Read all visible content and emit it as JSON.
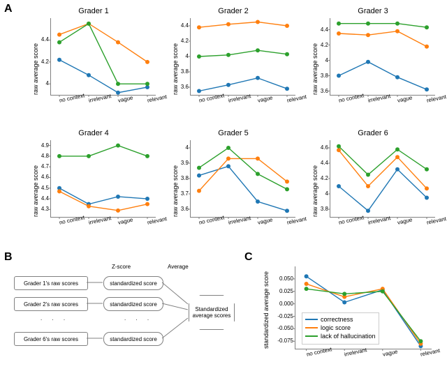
{
  "colors": {
    "correctness": "#1f77b4",
    "logic": "#ff7f0e",
    "hallucination": "#2ca02c",
    "grid": "#b0b0b0",
    "axis": "#808080"
  },
  "categories": [
    "no context",
    "irrelevant",
    "vague",
    "relevant"
  ],
  "line_width": 1.4,
  "marker_size": 3,
  "small_charts": [
    {
      "title": "Grader 1",
      "ylabel": "raw average score",
      "ylim": [
        3.9,
        4.6
      ],
      "yticks": [
        4.0,
        4.2,
        4.4
      ],
      "series": {
        "correctness": [
          4.22,
          4.08,
          3.92,
          3.97
        ],
        "logic": [
          4.45,
          4.55,
          4.38,
          4.2
        ],
        "hallucination": [
          4.38,
          4.55,
          4.0,
          4.0
        ]
      }
    },
    {
      "title": "Grader 2",
      "ylabel": "raw average score",
      "ylim": [
        3.5,
        4.5
      ],
      "yticks": [
        3.6,
        3.8,
        4.0,
        4.2,
        4.4
      ],
      "series": {
        "correctness": [
          3.55,
          3.63,
          3.72,
          3.58
        ],
        "logic": [
          4.38,
          4.42,
          4.45,
          4.4
        ],
        "hallucination": [
          4.0,
          4.02,
          4.08,
          4.03
        ]
      }
    },
    {
      "title": "Grader 3",
      "ylabel": "raw average score",
      "ylim": [
        3.55,
        4.55
      ],
      "yticks": [
        3.6,
        3.8,
        4.0,
        4.2,
        4.4
      ],
      "series": {
        "correctness": [
          3.8,
          3.98,
          3.78,
          3.62
        ],
        "logic": [
          4.35,
          4.33,
          4.38,
          4.18
        ],
        "hallucination": [
          4.48,
          4.48,
          4.48,
          4.43
        ]
      }
    },
    {
      "title": "Grader 4",
      "ylabel": "raw average score",
      "ylim": [
        4.23,
        4.95
      ],
      "yticks": [
        4.3,
        4.4,
        4.5,
        4.6,
        4.7,
        4.8,
        4.9
      ],
      "series": {
        "correctness": [
          4.5,
          4.35,
          4.42,
          4.4
        ],
        "logic": [
          4.47,
          4.33,
          4.29,
          4.35
        ],
        "hallucination": [
          4.8,
          4.8,
          4.9,
          4.8
        ]
      }
    },
    {
      "title": "Grader 5",
      "ylabel": "raw average score",
      "ylim": [
        3.55,
        4.05
      ],
      "yticks": [
        3.6,
        3.7,
        3.8,
        3.9,
        4.0
      ],
      "series": {
        "correctness": [
          3.82,
          3.88,
          3.65,
          3.59
        ],
        "logic": [
          3.72,
          3.93,
          3.93,
          3.78
        ],
        "hallucination": [
          3.87,
          4.0,
          3.83,
          3.73
        ]
      }
    },
    {
      "title": "Grader 6",
      "ylabel": "raw average score",
      "ylim": [
        3.7,
        4.7
      ],
      "yticks": [
        3.8,
        4.0,
        4.2,
        4.4,
        4.6
      ],
      "series": {
        "correctness": [
          4.1,
          3.78,
          4.32,
          3.95
        ],
        "logic": [
          4.57,
          4.1,
          4.48,
          4.07
        ],
        "hallucination": [
          4.62,
          4.25,
          4.58,
          4.32
        ]
      }
    }
  ],
  "panel_c": {
    "ylabel": "standardized average score",
    "ylim": [
      -0.09,
      0.075
    ],
    "yticks": [
      -0.075,
      -0.05,
      -0.025,
      0.0,
      0.025,
      0.05
    ],
    "series": {
      "correctness": [
        0.055,
        0.003,
        0.028,
        -0.085
      ],
      "logic": [
        0.04,
        0.014,
        0.03,
        -0.08
      ],
      "hallucination": [
        0.03,
        0.02,
        0.025,
        -0.075
      ]
    },
    "legend": [
      "correctness",
      "logic score",
      "lack of hallucination"
    ]
  },
  "panel_b": {
    "header_z": "Z-score",
    "header_avg": "Average",
    "boxes_left": [
      "Grader 1's  raw scores",
      "Grader 2's  raw scores",
      "Grader 6's  raw scores"
    ],
    "boxes_mid": [
      "standardized score",
      "standardized score",
      "standardized score"
    ],
    "octagon": "Standardized average scores",
    "dots": ". . ."
  },
  "labels": {
    "A": "A",
    "B": "B",
    "C": "C"
  }
}
